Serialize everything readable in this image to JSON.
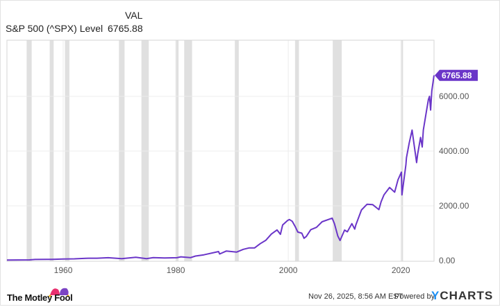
{
  "header": {
    "value_col_label": "VAL",
    "series_label": "S&P 500 (^SPX) Level",
    "series_value": "6765.88"
  },
  "footer": {
    "timestamp": "Nov 26, 2025, 8:56 AM EST",
    "powered_by": "Powered by",
    "ycharts_logo": "YCHARTS",
    "motley_logo": "The Motley Fool"
  },
  "colors": {
    "line": "#6a35c8",
    "recession": "#e0e0e0",
    "grid": "#ececec",
    "ycharts": "#1d8ff3"
  },
  "chart_data": {
    "type": "line",
    "title": "",
    "xlabel": "",
    "ylabel": "",
    "xlim": [
      1950,
      2025.9
    ],
    "ylim": [
      0,
      8000
    ],
    "x_ticks": [
      1960,
      1980,
      2000,
      2020
    ],
    "x_tick_labels": [
      "1960",
      "1980",
      "2000",
      "2020"
    ],
    "y_ticks": [
      0,
      2000,
      4000,
      6000
    ],
    "y_tick_labels": [
      "0.00",
      "2000.00",
      "4000.00",
      "6000.00"
    ],
    "y_axis_side": "right",
    "grid": true,
    "last_value_label": "6765.88",
    "recession_periods": [
      [
        1953.5,
        1954.4
      ],
      [
        1957.6,
        1958.3
      ],
      [
        1960.3,
        1961.1
      ],
      [
        1969.9,
        1970.9
      ],
      [
        1973.9,
        1975.2
      ],
      [
        1980.0,
        1980.5
      ],
      [
        1981.5,
        1982.9
      ],
      [
        1990.5,
        1991.2
      ],
      [
        2001.2,
        2001.9
      ],
      [
        2007.9,
        2009.5
      ],
      [
        2020.1,
        2020.4
      ]
    ],
    "series": [
      {
        "x": [
          1950,
          1952,
          1954,
          1955,
          1957,
          1958,
          1960,
          1962,
          1964,
          1966,
          1968,
          1970.4,
          1972.9,
          1974.8,
          1976,
          1978,
          1980.2,
          1980.9,
          1982.6,
          1983.5,
          1985,
          1987.6,
          1987.8,
          1989,
          1990.8,
          1992,
          1993,
          1994,
          1995,
          1996,
          1997,
          1998,
          1998.6,
          1999,
          1999.9,
          2000.2,
          2000.7,
          2001.2,
          2001.7,
          2002.4,
          2002.8,
          2003.2,
          2004,
          2005,
          2006,
          2007.8,
          2008.2,
          2008.8,
          2009.2,
          2010,
          2010.5,
          2011.3,
          2011.8,
          2012,
          2013,
          2014,
          2015,
          2016.1,
          2016.5,
          2017,
          2018,
          2018.9,
          2019.5,
          2020.1,
          2020.2,
          2020.9,
          2021,
          2021.5,
          2022,
          2022.8,
          2023,
          2023.5,
          2023.8,
          2024,
          2024.5,
          2024.9,
          2025.1,
          2025.3,
          2025.5,
          2025.9
        ],
        "values": [
          17,
          24,
          26,
          40,
          45,
          42,
          58,
          63,
          84,
          85,
          103,
          72,
          118,
          69,
          107,
          96,
          105,
          136,
          107,
          165,
          211,
          330,
          240,
          350,
          310,
          410,
          460,
          460,
          615,
          740,
          970,
          1120,
          960,
          1300,
          1469,
          1500,
          1436,
          1250,
          1040,
          1000,
          815,
          880,
          1130,
          1212,
          1418,
          1549,
          1350,
          900,
          735,
          1115,
          1050,
          1350,
          1150,
          1300,
          1848,
          2059,
          2044,
          1860,
          2150,
          2400,
          2670,
          2500,
          2950,
          3230,
          2400,
          3500,
          3756,
          4300,
          4766,
          3580,
          3900,
          4500,
          4150,
          4770,
          5400,
          5881,
          6000,
          5500,
          6200,
          6765.88
        ]
      }
    ]
  }
}
